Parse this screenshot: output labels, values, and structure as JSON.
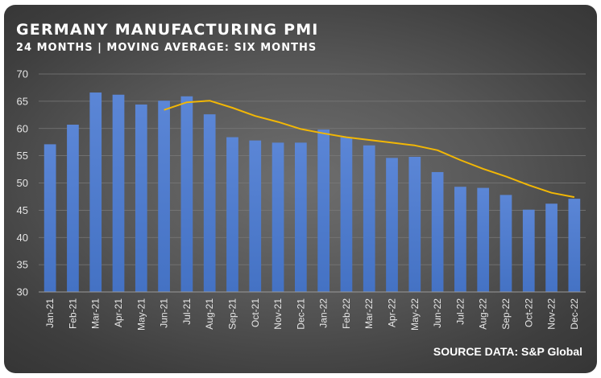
{
  "header": {
    "title": "GERMANY MANUFACTURING PMI",
    "subtitle": "24 MONTHS | MOVING AVERAGE: SIX MONTHS"
  },
  "footer": {
    "source": "SOURCE DATA: S&P Global"
  },
  "colors": {
    "bar": "#4472c4",
    "line": "#f2b705",
    "grid": "#7a7a7a",
    "text": "#ffffff"
  },
  "chart_data": {
    "type": "bar",
    "title": "GERMANY MANUFACTURING PMI",
    "subtitle": "24 MONTHS | MOVING AVERAGE: SIX MONTHS",
    "categories": [
      "Jan-21",
      "Feb-21",
      "Mar-21",
      "Apr-21",
      "May-21",
      "Jun-21",
      "Jul-21",
      "Aug-21",
      "Sep-21",
      "Oct-21",
      "Nov-21",
      "Dec-21",
      "Jan-22",
      "Feb-22",
      "Mar-22",
      "Apr-22",
      "May-22",
      "Jun-22",
      "Jul-22",
      "Aug-22",
      "Sep-22",
      "Oct-22",
      "Nov-22",
      "Dec-22"
    ],
    "series": [
      {
        "type": "bar",
        "values": [
          57.1,
          60.7,
          66.6,
          66.2,
          64.4,
          65.1,
          65.9,
          62.6,
          58.4,
          57.8,
          57.4,
          57.4,
          59.8,
          58.4,
          56.9,
          54.6,
          54.8,
          52.0,
          49.3,
          49.1,
          47.8,
          45.1,
          46.2,
          47.1
        ]
      },
      {
        "type": "line",
        "values": [
          null,
          null,
          null,
          null,
          null,
          63.4,
          64.8,
          65.1,
          63.8,
          62.3,
          61.2,
          59.9,
          59.1,
          58.4,
          57.9,
          57.4,
          56.9,
          56.0,
          54.2,
          52.6,
          51.2,
          49.6,
          48.2,
          47.4
        ]
      }
    ],
    "ylim": [
      30,
      70
    ],
    "yticks": [
      30,
      35,
      40,
      45,
      50,
      55,
      60,
      65,
      70
    ],
    "grid": "horizontal"
  }
}
